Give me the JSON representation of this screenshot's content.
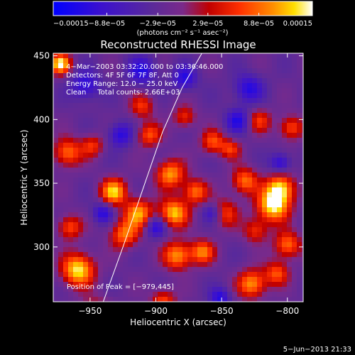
{
  "chart_data": {
    "type": "heatmap",
    "title": "Reconstructed RHESSI Image",
    "xlabel": "Heliocentric X (arcsec)",
    "ylabel": "Heliocentric Y (arcsec)",
    "xlim": [
      -978,
      -788
    ],
    "ylim": [
      257,
      452
    ],
    "x_ticks": [
      -950,
      -900,
      -850,
      -800
    ],
    "y_ticks": [
      300,
      350,
      400,
      450
    ],
    "x_tick_labels": [
      "−950",
      "−900",
      "−850",
      "−800"
    ],
    "y_tick_labels": [
      "300",
      "350",
      "400",
      "450"
    ],
    "colorbar": {
      "min": -0.00015,
      "max": 0.00015,
      "ticks": [
        -0.00015,
        -8.8e-05,
        -2.9e-05,
        2.9e-05,
        8.8e-05,
        0.00015
      ],
      "tick_labels": [
        "−0.00015",
        "−8.8e−05",
        "−2.9e−05",
        "2.9e−05",
        "8.8e−05",
        "0.00015"
      ],
      "unit_label": "(photons cm⁻² s⁻¹ asec⁻²)",
      "colors": [
        "#0000ff",
        "#4000c0",
        "#5a2a9a",
        "#8a3090",
        "#c00000",
        "#ff2000",
        "#ff8800",
        "#ffd000",
        "#ffffff"
      ]
    },
    "annotations": [
      "4−Mar−2003 03:32:20.000 to 03:36:46.000",
      "Detectors: 4F 5F 6F 7F 8F, Att 0",
      "Energy Range: 12.0 − 25.0 keV",
      "Clean     Total counts: 2.66E+03"
    ],
    "peak_label": "Position of Peak = [−979,445]",
    "peak": [
      -979,
      445
    ],
    "limb_curve_x": [
      -940,
      -925,
      -910,
      -895,
      -880,
      -865
    ],
    "limb_curve_y": [
      257,
      300,
      345,
      390,
      425,
      452
    ]
  },
  "footer": {
    "timestamp": "5−Jun−2013 21:33"
  }
}
